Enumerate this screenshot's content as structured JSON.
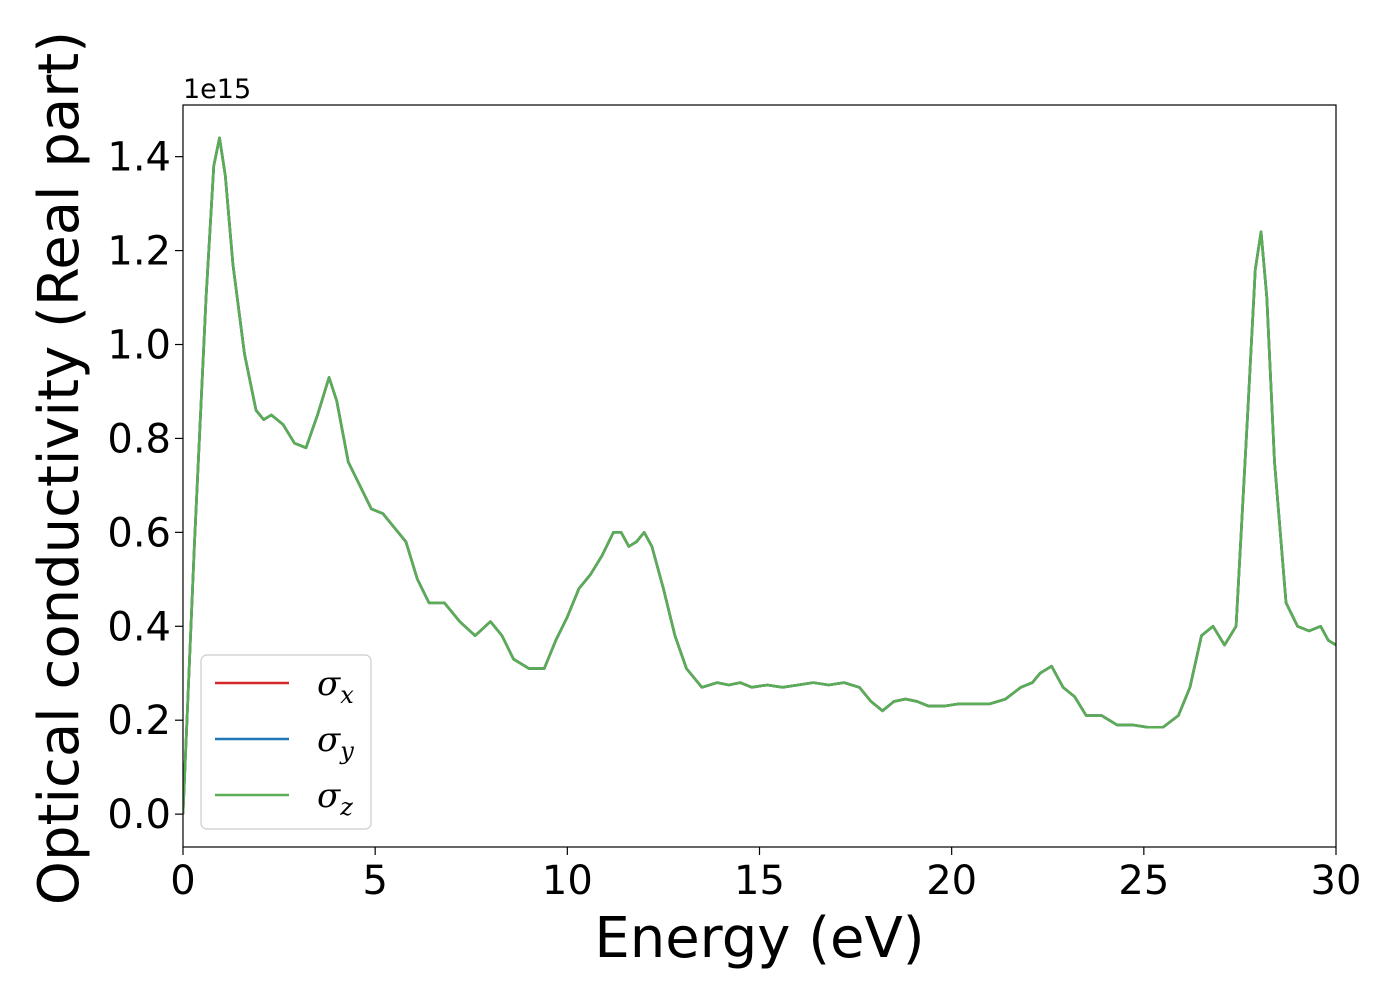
{
  "chart_data": {
    "type": "line",
    "xlabel": "Energy (eV)",
    "ylabel": "Optical conductivity (Real part)",
    "y_offset_label": "1e15",
    "xlim": [
      0,
      30
    ],
    "ylim": [
      -0.07,
      1.51
    ],
    "x_ticks": [
      0,
      5,
      10,
      15,
      20,
      25,
      30
    ],
    "x_tick_labels": [
      "0",
      "5",
      "10",
      "15",
      "20",
      "25",
      "30"
    ],
    "y_ticks": [
      0.0,
      0.2,
      0.4,
      0.6,
      0.8,
      1.0,
      1.2,
      1.4
    ],
    "y_tick_labels": [
      "0.0",
      "0.2",
      "0.4",
      "0.6",
      "0.8",
      "1.0",
      "1.2",
      "1.4"
    ],
    "grid": false,
    "legend_position": "lower-left",
    "x": [
      0,
      0.3,
      0.6,
      0.8,
      0.95,
      1.1,
      1.3,
      1.6,
      1.9,
      2.1,
      2.3,
      2.6,
      2.9,
      3.2,
      3.5,
      3.8,
      4.0,
      4.3,
      4.6,
      4.9,
      5.2,
      5.5,
      5.8,
      6.1,
      6.4,
      6.8,
      7.2,
      7.6,
      8.0,
      8.3,
      8.6,
      9.0,
      9.4,
      9.7,
      10.0,
      10.3,
      10.6,
      10.9,
      11.2,
      11.4,
      11.6,
      11.8,
      12.0,
      12.2,
      12.5,
      12.8,
      13.1,
      13.5,
      13.9,
      14.2,
      14.5,
      14.8,
      15.2,
      15.6,
      16.0,
      16.4,
      16.8,
      17.2,
      17.6,
      17.9,
      18.2,
      18.5,
      18.8,
      19.1,
      19.4,
      19.8,
      20.2,
      20.6,
      21.0,
      21.4,
      21.8,
      22.1,
      22.3,
      22.6,
      22.9,
      23.2,
      23.5,
      23.9,
      24.3,
      24.7,
      25.1,
      25.5,
      25.9,
      26.2,
      26.5,
      26.8,
      27.1,
      27.4,
      27.7,
      27.9,
      28.05,
      28.2,
      28.4,
      28.7,
      29.0,
      29.3,
      29.6,
      29.8,
      30.0
    ],
    "series": [
      {
        "name": "σx",
        "color": "#d62728",
        "values": [
          0.0,
          0.58,
          1.1,
          1.38,
          1.44,
          1.36,
          1.17,
          0.98,
          0.86,
          0.84,
          0.85,
          0.83,
          0.79,
          0.78,
          0.85,
          0.93,
          0.88,
          0.75,
          0.7,
          0.65,
          0.64,
          0.61,
          0.58,
          0.5,
          0.45,
          0.45,
          0.41,
          0.38,
          0.41,
          0.38,
          0.33,
          0.31,
          0.31,
          0.37,
          0.42,
          0.48,
          0.51,
          0.55,
          0.6,
          0.6,
          0.57,
          0.58,
          0.6,
          0.57,
          0.48,
          0.38,
          0.31,
          0.27,
          0.28,
          0.275,
          0.28,
          0.27,
          0.275,
          0.27,
          0.275,
          0.28,
          0.275,
          0.28,
          0.27,
          0.24,
          0.22,
          0.24,
          0.245,
          0.24,
          0.23,
          0.23,
          0.235,
          0.235,
          0.235,
          0.245,
          0.27,
          0.28,
          0.3,
          0.315,
          0.27,
          0.25,
          0.21,
          0.21,
          0.19,
          0.19,
          0.185,
          0.185,
          0.21,
          0.27,
          0.38,
          0.4,
          0.36,
          0.4,
          0.85,
          1.16,
          1.24,
          1.1,
          0.75,
          0.45,
          0.4,
          0.39,
          0.4,
          0.37,
          0.36
        ]
      },
      {
        "name": "σy",
        "color": "#1f77b4",
        "values": [
          0.0,
          0.58,
          1.1,
          1.38,
          1.44,
          1.36,
          1.17,
          0.98,
          0.86,
          0.84,
          0.85,
          0.83,
          0.79,
          0.78,
          0.85,
          0.93,
          0.88,
          0.75,
          0.7,
          0.65,
          0.64,
          0.61,
          0.58,
          0.5,
          0.45,
          0.45,
          0.41,
          0.38,
          0.41,
          0.38,
          0.33,
          0.31,
          0.31,
          0.37,
          0.42,
          0.48,
          0.51,
          0.55,
          0.6,
          0.6,
          0.57,
          0.58,
          0.6,
          0.57,
          0.48,
          0.38,
          0.31,
          0.27,
          0.28,
          0.275,
          0.28,
          0.27,
          0.275,
          0.27,
          0.275,
          0.28,
          0.275,
          0.28,
          0.27,
          0.24,
          0.22,
          0.24,
          0.245,
          0.24,
          0.23,
          0.23,
          0.235,
          0.235,
          0.235,
          0.245,
          0.27,
          0.28,
          0.3,
          0.315,
          0.27,
          0.25,
          0.21,
          0.21,
          0.19,
          0.19,
          0.185,
          0.185,
          0.21,
          0.27,
          0.38,
          0.4,
          0.36,
          0.4,
          0.85,
          1.16,
          1.24,
          1.1,
          0.75,
          0.45,
          0.4,
          0.39,
          0.4,
          0.37,
          0.36
        ]
      },
      {
        "name": "σz",
        "color": "#5aad55",
        "values": [
          0.0,
          0.58,
          1.1,
          1.38,
          1.44,
          1.36,
          1.17,
          0.98,
          0.86,
          0.84,
          0.85,
          0.83,
          0.79,
          0.78,
          0.85,
          0.93,
          0.88,
          0.75,
          0.7,
          0.65,
          0.64,
          0.61,
          0.58,
          0.5,
          0.45,
          0.45,
          0.41,
          0.38,
          0.41,
          0.38,
          0.33,
          0.31,
          0.31,
          0.37,
          0.42,
          0.48,
          0.51,
          0.55,
          0.6,
          0.6,
          0.57,
          0.58,
          0.6,
          0.57,
          0.48,
          0.38,
          0.31,
          0.27,
          0.28,
          0.275,
          0.28,
          0.27,
          0.275,
          0.27,
          0.275,
          0.28,
          0.275,
          0.28,
          0.27,
          0.24,
          0.22,
          0.24,
          0.245,
          0.24,
          0.23,
          0.23,
          0.235,
          0.235,
          0.235,
          0.245,
          0.27,
          0.28,
          0.3,
          0.315,
          0.27,
          0.25,
          0.21,
          0.21,
          0.19,
          0.19,
          0.185,
          0.185,
          0.21,
          0.27,
          0.38,
          0.4,
          0.36,
          0.4,
          0.85,
          1.16,
          1.24,
          1.1,
          0.75,
          0.45,
          0.4,
          0.39,
          0.4,
          0.37,
          0.36
        ]
      }
    ],
    "legend": [
      {
        "symbol": "σ",
        "subscript": "x",
        "color": "#d62728"
      },
      {
        "symbol": "σ",
        "subscript": "y",
        "color": "#1f77b4"
      },
      {
        "symbol": "σ",
        "subscript": "z",
        "color": "#5aad55"
      }
    ]
  }
}
